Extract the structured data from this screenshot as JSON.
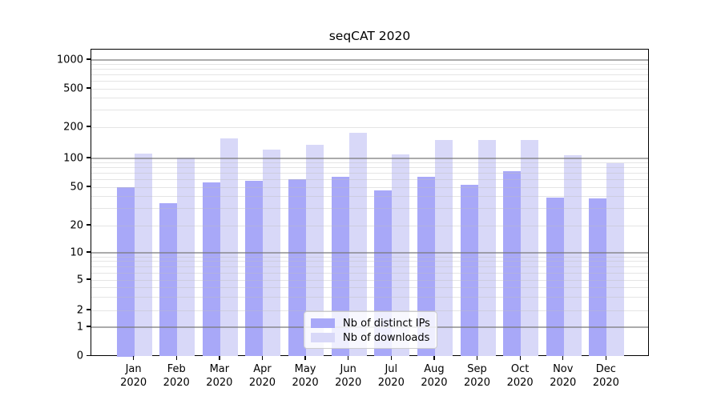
{
  "chart_data": {
    "type": "bar",
    "title": "seqCAT 2020",
    "categories": [
      "Jan",
      "Feb",
      "Mar",
      "Apr",
      "May",
      "Jun",
      "Jul",
      "Aug",
      "Sep",
      "Oct",
      "Nov",
      "Dec"
    ],
    "year_label": "2020",
    "series": [
      {
        "name": "Nb of distinct IPs",
        "color": "#a8a8f8",
        "values": [
          50,
          34,
          56,
          58,
          61,
          64,
          46,
          64,
          53,
          74,
          39,
          38
        ]
      },
      {
        "name": "Nb of downloads",
        "color": "#d8d8f8",
        "values": [
          112,
          102,
          156,
          122,
          136,
          178,
          110,
          151,
          151,
          150,
          108,
          89
        ]
      }
    ],
    "yticks": [
      0,
      1,
      2,
      5,
      10,
      20,
      50,
      100,
      200,
      500,
      1000
    ],
    "yscale": "log-like (labeled 0,1,2,5,10,20,50,100,200,500,1000)",
    "ylim": [
      0,
      1275
    ],
    "xlabel": "",
    "ylabel": "",
    "grid": true,
    "grid_major_at": [
      1,
      10,
      100,
      1000
    ],
    "legend_position": "inside lower center",
    "colors": {
      "axis": "#000000",
      "major_grid": "#b0b0b0",
      "minor_grid": "#e6e6e6",
      "legend_border": "#cccccc"
    }
  }
}
